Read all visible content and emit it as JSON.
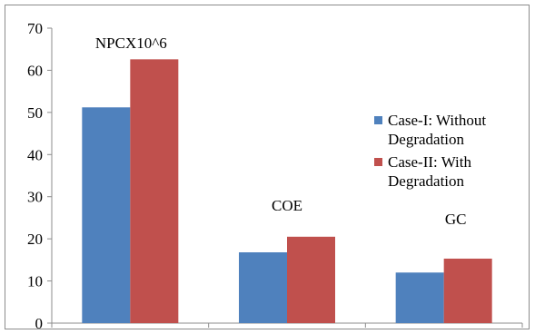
{
  "chart_data": {
    "type": "bar",
    "categories": [
      "NPCX10^6",
      "COE",
      "GC"
    ],
    "series": [
      {
        "name": "Case-I: Without Degradation",
        "color": "#4f81bd",
        "values": [
          51.2,
          16.8,
          12.0
        ]
      },
      {
        "name": "Case-II: With Degradation",
        "color": "#c0504d",
        "values": [
          62.6,
          20.5,
          15.3
        ]
      }
    ],
    "title": "",
    "xlabel": "",
    "ylabel": "",
    "ylim": [
      0,
      70
    ],
    "yticks": [
      "0",
      "10",
      "20",
      "30",
      "40",
      "50",
      "60",
      "70"
    ],
    "annotations": [
      "NPCX10^6",
      "COE",
      "GC"
    ],
    "legend": {
      "placement": "right",
      "entries": [
        {
          "line1": "Case-I: Without",
          "line2": "Degradation"
        },
        {
          "line1": "Case-II: With",
          "line2": "Degradation"
        }
      ]
    },
    "grid": false
  }
}
